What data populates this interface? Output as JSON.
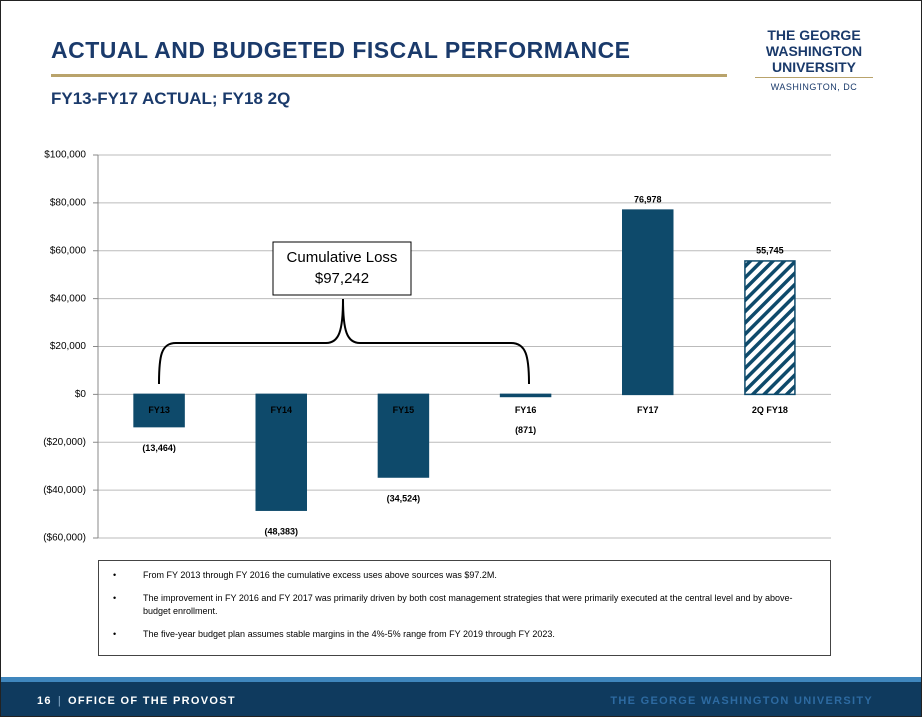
{
  "header": {
    "title": "ACTUAL AND BUDGETED FISCAL PERFORMANCE",
    "subtitle": "FY13-FY17 ACTUAL; FY18 2Q",
    "logo": [
      "THE GEORGE",
      "WASHINGTON",
      "UNIVERSITY"
    ],
    "logo_location": "WASHINGTON, DC"
  },
  "chart_data": {
    "type": "bar",
    "categories": [
      "FY13",
      "FY14",
      "FY15",
      "FY16",
      "FY17",
      "2Q FY18"
    ],
    "values": [
      -13464,
      -48383,
      -34524,
      -871,
      76978,
      55745
    ],
    "value_labels": [
      "(13,464)",
      "(48,383)",
      "(34,524)",
      "(871)",
      "76,978",
      "55,745"
    ],
    "color": "#0e4a6b",
    "patterns": [
      "solid",
      "solid",
      "solid",
      "solid",
      "solid",
      "hatch"
    ],
    "ylim": [
      -60000,
      100000
    ],
    "yticks": [
      {
        "value": -60000,
        "label": "($60,000)"
      },
      {
        "value": -40000,
        "label": "($40,000)"
      },
      {
        "value": -20000,
        "label": "($20,000)"
      },
      {
        "value": 0,
        "label": "$0"
      },
      {
        "value": 20000,
        "label": "$20,000"
      },
      {
        "value": 40000,
        "label": "$40,000"
      },
      {
        "value": 60000,
        "label": "$60,000"
      },
      {
        "value": 80000,
        "label": "$80,000"
      },
      {
        "value": 100000,
        "label": "$100,000"
      }
    ],
    "grid": true,
    "annotation": [
      "Cumulative Loss",
      "$97,242"
    ]
  },
  "notes": [
    "From FY 2013 through FY 2016 the cumulative excess uses above sources was $97.2M.",
    "The improvement in FY 2016 and FY 2017 was primarily driven by both cost management strategies that were primarily executed at the central level and by above-budget enrollment.",
    "The five-year budget plan assumes stable margins in the 4%-5% range from FY 2019 through FY 2023."
  ],
  "footer": {
    "page": "16",
    "separator": "|",
    "section": "OFFICE OF THE PROVOST",
    "brand": "THE GEORGE WASHINGTON UNIVERSITY"
  }
}
